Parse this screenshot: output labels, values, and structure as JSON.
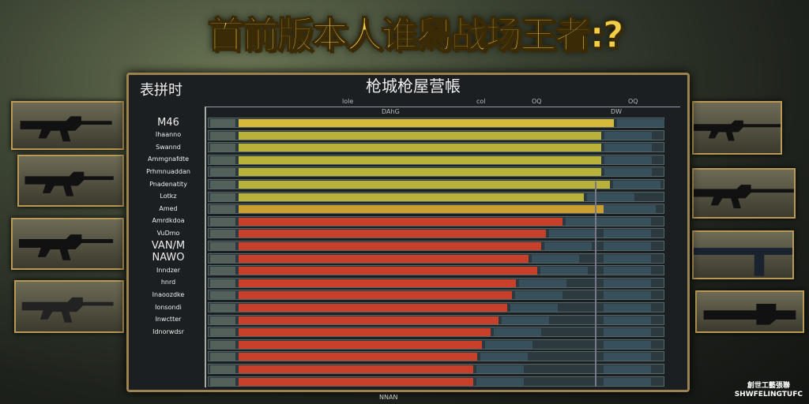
{
  "title": "首前版本人谁舄战场王者:?",
  "panel": {
    "title": "枪城枪屋营帳",
    "left_header": "表拼时",
    "axis_ticks": [
      "lole",
      "col",
      "OQ",
      "OQ"
    ],
    "col_header": "DAhG",
    "col_header2": "DW"
  },
  "chart_data": {
    "type": "bar",
    "orientation": "horizontal",
    "categories": [
      "M46",
      "Ihaanno",
      "Swannd",
      "Ammgnafdte",
      "Prhmnuaddan",
      "Pnadenatity",
      "Lotkz",
      "Amed",
      "Amrdkdoa",
      "VuDmo",
      "VAN/M",
      "NAWO",
      "Inndzer",
      "hnrd",
      "Inaoozdke",
      "Ionsondi",
      "Inwctter",
      "Idnorwdsr",
      "",
      "",
      "",
      ""
    ],
    "values": [
      88,
      85,
      85,
      85,
      85,
      87,
      81,
      86,
      76,
      72,
      71,
      68,
      70,
      65,
      64,
      63,
      61,
      59,
      57,
      56,
      55,
      55
    ],
    "xlim": [
      0,
      100
    ],
    "colors": {
      "top": "#d9b93a",
      "upper": "#b8b23a",
      "lower": "#c8402a"
    }
  },
  "watermark": [
    "創世工藝張聯",
    "SHWFELINGTUFC"
  ],
  "footer": "NNAN"
}
